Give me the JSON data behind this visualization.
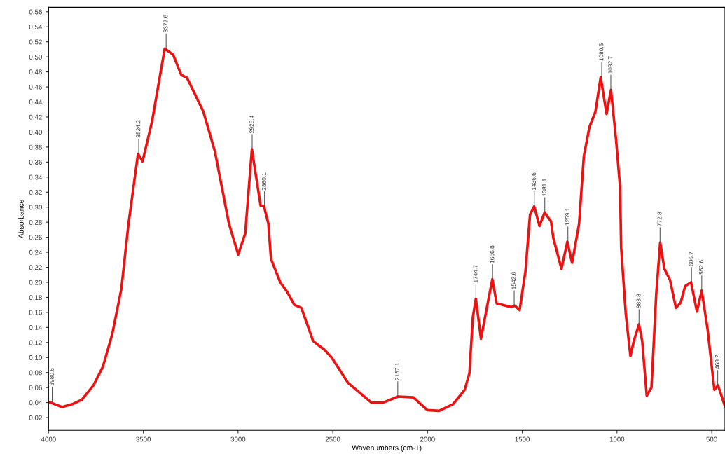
{
  "chart_data": {
    "type": "line",
    "xlabel": "Wavenumbers (cm-1)",
    "ylabel": "Absorbance",
    "xlim": [
      4000,
      430
    ],
    "ylim": [
      0.003,
      0.566
    ],
    "xticks": [
      4000,
      3500,
      3000,
      2500,
      2000,
      1500,
      1000,
      500
    ],
    "yticks": [
      {
        "value": 0.02,
        "label": "0.02"
      },
      {
        "value": 0.04,
        "label": "0.04"
      },
      {
        "value": 0.06,
        "label": "0.06"
      },
      {
        "value": 0.08,
        "label": "0.08"
      },
      {
        "value": 0.1,
        "label": "0.10"
      },
      {
        "value": 0.12,
        "label": "0.12"
      },
      {
        "value": 0.14,
        "label": "0.14"
      },
      {
        "value": 0.16,
        "label": "0.16"
      },
      {
        "value": 0.18,
        "label": "0.18"
      },
      {
        "value": 0.2,
        "label": "0.20"
      },
      {
        "value": 0.22,
        "label": "0.22"
      },
      {
        "value": 0.24,
        "label": "0.24"
      },
      {
        "value": 0.26,
        "label": "0.26"
      },
      {
        "value": 0.28,
        "label": "0.28"
      },
      {
        "value": 0.3,
        "label": "0.30"
      },
      {
        "value": 0.32,
        "label": "0.32"
      },
      {
        "value": 0.34,
        "label": "0.34"
      },
      {
        "value": 0.36,
        "label": "0.36"
      },
      {
        "value": 0.38,
        "label": "0.38"
      },
      {
        "value": 0.4,
        "label": "0.40"
      },
      {
        "value": 0.42,
        "label": "0.42"
      },
      {
        "value": 0.44,
        "label": "0.44"
      },
      {
        "value": 0.46,
        "label": "0.46"
      },
      {
        "value": 0.48,
        "label": "0.48"
      },
      {
        "value": 0.5,
        "label": "0.50"
      },
      {
        "value": 0.52,
        "label": "0.52"
      },
      {
        "value": 0.54,
        "label": "0.54"
      },
      {
        "value": 0.56,
        "label": "0.56"
      }
    ],
    "grid": false,
    "marker": "none",
    "line_style": "solid",
    "series": [
      {
        "color": "#ee1111",
        "x": [
          4000,
          3929,
          3874,
          3824,
          3763,
          3713,
          3664,
          3616,
          3578,
          3528,
          3504,
          3454,
          3387,
          3343,
          3300,
          3269,
          3183,
          3122,
          3048,
          2999,
          2962,
          2927,
          2881,
          2863,
          2840,
          2826,
          2777,
          2740,
          2703,
          2666,
          2604,
          2543,
          2506,
          2419,
          2296,
          2235,
          2155,
          2075,
          2001,
          1939,
          1865,
          1804,
          1779,
          1761,
          1745,
          1718,
          1687,
          1658,
          1635,
          1557,
          1539,
          1514,
          1483,
          1459,
          1437,
          1409,
          1382,
          1348,
          1336,
          1293,
          1262,
          1237,
          1200,
          1175,
          1145,
          1114,
          1086,
          1055,
          1032,
          1005,
          984,
          978,
          954,
          929,
          911,
          884,
          867,
          843,
          818,
          793,
          772,
          750,
          720,
          689,
          664,
          640,
          609,
          578,
          553,
          522,
          486,
          467,
          430
        ],
        "values": [
          0.041,
          0.034,
          0.038,
          0.044,
          0.063,
          0.088,
          0.131,
          0.191,
          0.278,
          0.371,
          0.361,
          0.414,
          0.511,
          0.503,
          0.476,
          0.472,
          0.427,
          0.374,
          0.278,
          0.237,
          0.265,
          0.377,
          0.302,
          0.301,
          0.278,
          0.231,
          0.2,
          0.187,
          0.17,
          0.166,
          0.122,
          0.11,
          0.1,
          0.066,
          0.04,
          0.04,
          0.048,
          0.047,
          0.03,
          0.029,
          0.038,
          0.057,
          0.079,
          0.153,
          0.178,
          0.125,
          0.166,
          0.204,
          0.172,
          0.167,
          0.169,
          0.163,
          0.215,
          0.29,
          0.301,
          0.275,
          0.293,
          0.281,
          0.259,
          0.218,
          0.254,
          0.226,
          0.278,
          0.368,
          0.407,
          0.427,
          0.473,
          0.424,
          0.456,
          0.39,
          0.327,
          0.246,
          0.159,
          0.102,
          0.122,
          0.144,
          0.122,
          0.049,
          0.06,
          0.184,
          0.253,
          0.218,
          0.203,
          0.166,
          0.173,
          0.195,
          0.2,
          0.161,
          0.189,
          0.138,
          0.057,
          0.063,
          0.035
        ]
      }
    ],
    "annotations": [
      {
        "text": "3980.6",
        "x": 3980.6,
        "y": 0.041
      },
      {
        "text": "3524.2",
        "x": 3524.2,
        "y": 0.371
      },
      {
        "text": "3379.6",
        "x": 3379.6,
        "y": 0.511
      },
      {
        "text": "2925.4",
        "x": 2925.4,
        "y": 0.377
      },
      {
        "text": "2860.1",
        "x": 2860.1,
        "y": 0.301
      },
      {
        "text": "2157.1",
        "x": 2157.1,
        "y": 0.048
      },
      {
        "text": "1744.7",
        "x": 1744.7,
        "y": 0.178
      },
      {
        "text": "1656.8",
        "x": 1656.8,
        "y": 0.204
      },
      {
        "text": "1542.6",
        "x": 1542.6,
        "y": 0.169
      },
      {
        "text": "1436.6",
        "x": 1436.6,
        "y": 0.301
      },
      {
        "text": "1381.1",
        "x": 1381.1,
        "y": 0.293
      },
      {
        "text": "1259.1",
        "x": 1259.1,
        "y": 0.254
      },
      {
        "text": "1080.5",
        "x": 1080.5,
        "y": 0.473
      },
      {
        "text": "1032.7",
        "x": 1032.7,
        "y": 0.456
      },
      {
        "text": "883.8",
        "x": 883.8,
        "y": 0.144
      },
      {
        "text": "772.8",
        "x": 772.8,
        "y": 0.253
      },
      {
        "text": "606.7",
        "x": 606.7,
        "y": 0.2
      },
      {
        "text": "552.6",
        "x": 552.6,
        "y": 0.189
      },
      {
        "text": "468.2",
        "x": 468.2,
        "y": 0.063
      }
    ]
  }
}
